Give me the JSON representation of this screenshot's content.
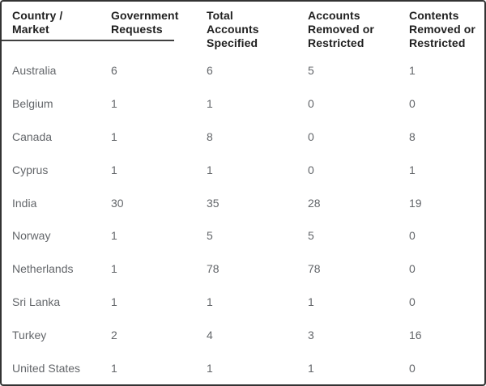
{
  "table": {
    "headers": [
      "Country / Market",
      "Government Requests",
      "Total Accounts Specified",
      "Accounts Removed or Restricted",
      "Contents Removed or Restricted"
    ],
    "rows": [
      {
        "country": "Australia",
        "cells": [
          "6",
          "6",
          "5",
          "1"
        ]
      },
      {
        "country": "Belgium",
        "cells": [
          "1",
          "1",
          "0",
          "0"
        ]
      },
      {
        "country": "Canada",
        "cells": [
          "1",
          "8",
          "0",
          "8"
        ]
      },
      {
        "country": "Cyprus",
        "cells": [
          "1",
          "1",
          "0",
          "1"
        ]
      },
      {
        "country": "India",
        "cells": [
          "30",
          "35",
          "28",
          "19"
        ]
      },
      {
        "country": "Norway",
        "cells": [
          "1",
          "5",
          "5",
          "0"
        ]
      },
      {
        "country": "Netherlands",
        "cells": [
          "1",
          "78",
          "78",
          "0"
        ]
      },
      {
        "country": "Sri Lanka",
        "cells": [
          "1",
          "1",
          "1",
          "0"
        ]
      },
      {
        "country": "Turkey",
        "cells": [
          "2",
          "4",
          "3",
          "16"
        ]
      },
      {
        "country": "United States",
        "cells": [
          "1",
          "1",
          "1",
          "0"
        ]
      }
    ]
  },
  "colors": {
    "border": "#333333",
    "header_text": "#1f1f1f",
    "body_text": "#63666a",
    "header_underline": "#404040",
    "background": "#ffffff"
  },
  "chart_data": {
    "type": "table",
    "columns": [
      "Country / Market",
      "Government Requests",
      "Total Accounts Specified",
      "Accounts Removed or Restricted",
      "Contents Removed or Restricted"
    ],
    "rows": [
      [
        "Australia",
        6,
        6,
        5,
        1
      ],
      [
        "Belgium",
        1,
        1,
        0,
        0
      ],
      [
        "Canada",
        1,
        8,
        0,
        8
      ],
      [
        "Cyprus",
        1,
        1,
        0,
        1
      ],
      [
        "India",
        30,
        35,
        28,
        19
      ],
      [
        "Norway",
        1,
        5,
        5,
        0
      ],
      [
        "Netherlands",
        1,
        78,
        78,
        0
      ],
      [
        "Sri Lanka",
        1,
        1,
        1,
        0
      ],
      [
        "Turkey",
        2,
        4,
        3,
        16
      ],
      [
        "United States",
        1,
        1,
        1,
        0
      ]
    ]
  }
}
